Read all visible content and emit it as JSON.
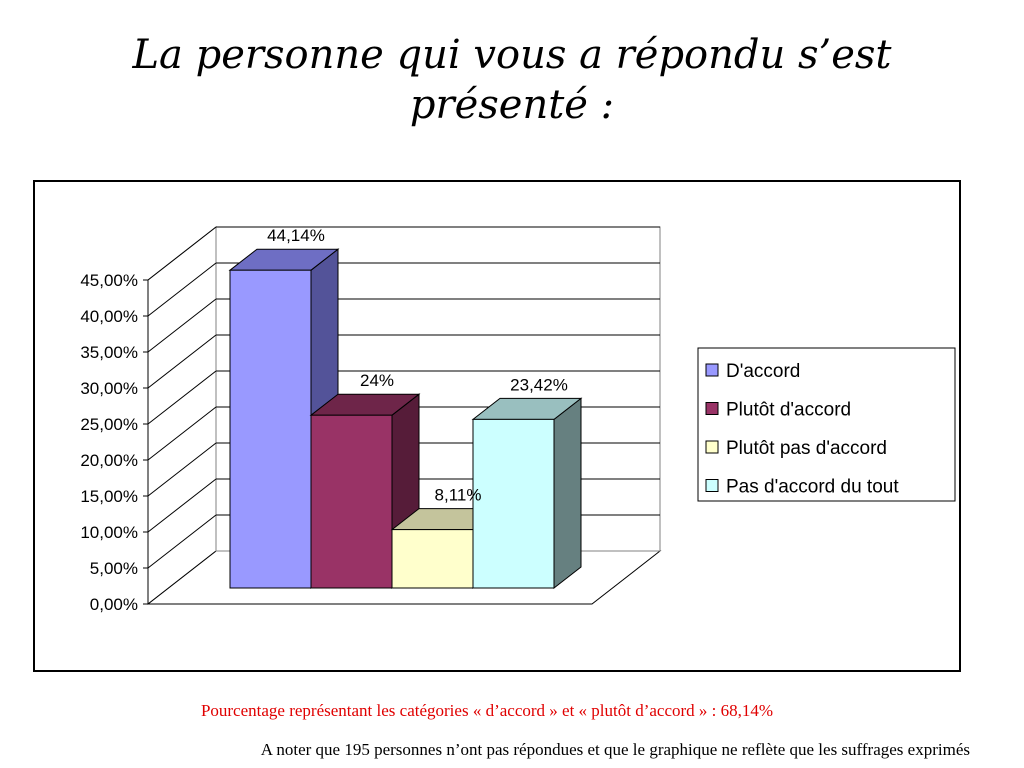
{
  "slide": {
    "title_line1": "La personne qui vous a répondu s’est",
    "title_line2": "présenté :",
    "note_red": "Pourcentage représentant les catégories « d’accord » et « plutôt d’accord » : 68,14%",
    "note_black": "A noter que 195 personnes n’ont pas répondues et que le graphique ne reflète que les suffrages exprimés"
  },
  "chart_data": {
    "type": "bar",
    "style": "3d-clustered-column",
    "title": "",
    "xlabel": "",
    "ylabel": "",
    "ylim": [
      0,
      45
    ],
    "yticks": [
      "0,00%",
      "5,00%",
      "10,00%",
      "15,00%",
      "20,00%",
      "25,00%",
      "30,00%",
      "35,00%",
      "40,00%",
      "45,00%"
    ],
    "grid": true,
    "legend_position": "right",
    "series": [
      {
        "name": "D'accord",
        "value": 44.14,
        "label": "44,14%",
        "color": "#9999ff",
        "side_color": "#535399",
        "top_color": "#6e6ec4"
      },
      {
        "name": "Plutôt d'accord",
        "value": 24,
        "label": "24%",
        "color": "#993366",
        "side_color": "#561c39",
        "top_color": "#6e2549"
      },
      {
        "name": "Plutôt pas d'accord",
        "value": 8.11,
        "label": "8,11%",
        "color": "#ffffcc",
        "side_color": "#9a9a7a",
        "top_color": "#c4c49c"
      },
      {
        "name": "Pas d'accord du tout",
        "value": 23.42,
        "label": "23,42%",
        "color": "#ccffff",
        "side_color": "#668080",
        "top_color": "#99bfbf"
      }
    ]
  }
}
